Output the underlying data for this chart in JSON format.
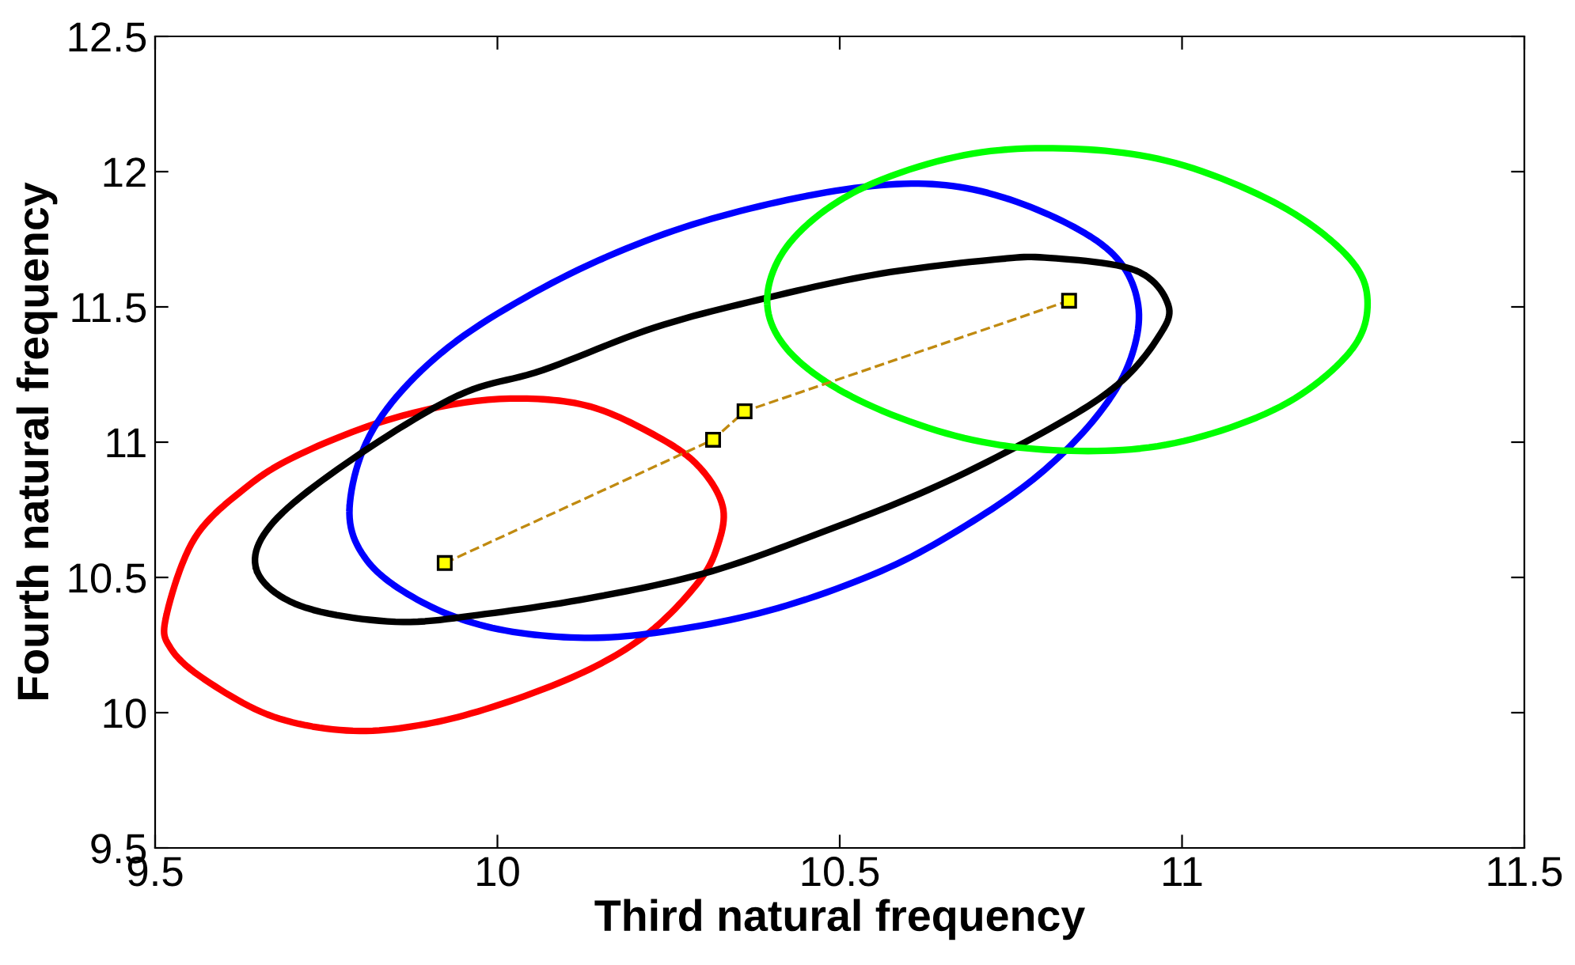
{
  "chart_data": {
    "type": "line",
    "xlabel": "Third natural frequency",
    "ylabel": "Fourth natural frequency",
    "xlim": [
      9.5,
      11.5
    ],
    "xticks": [
      9.5,
      10,
      10.5,
      11,
      11.5
    ],
    "ylim": [
      9.5,
      12.5
    ],
    "yticks": [
      9.5,
      10,
      10.5,
      11,
      11.5,
      12,
      12.5
    ],
    "grid": false,
    "legend": false,
    "series": [
      {
        "color": "#c08a10",
        "marker": "square",
        "line_style": "dashed",
        "x": [
          9.923,
          10.315,
          10.361,
          10.835
        ],
        "values": [
          10.553,
          11.009,
          11.114,
          11.523
        ]
      }
    ]
  }
}
